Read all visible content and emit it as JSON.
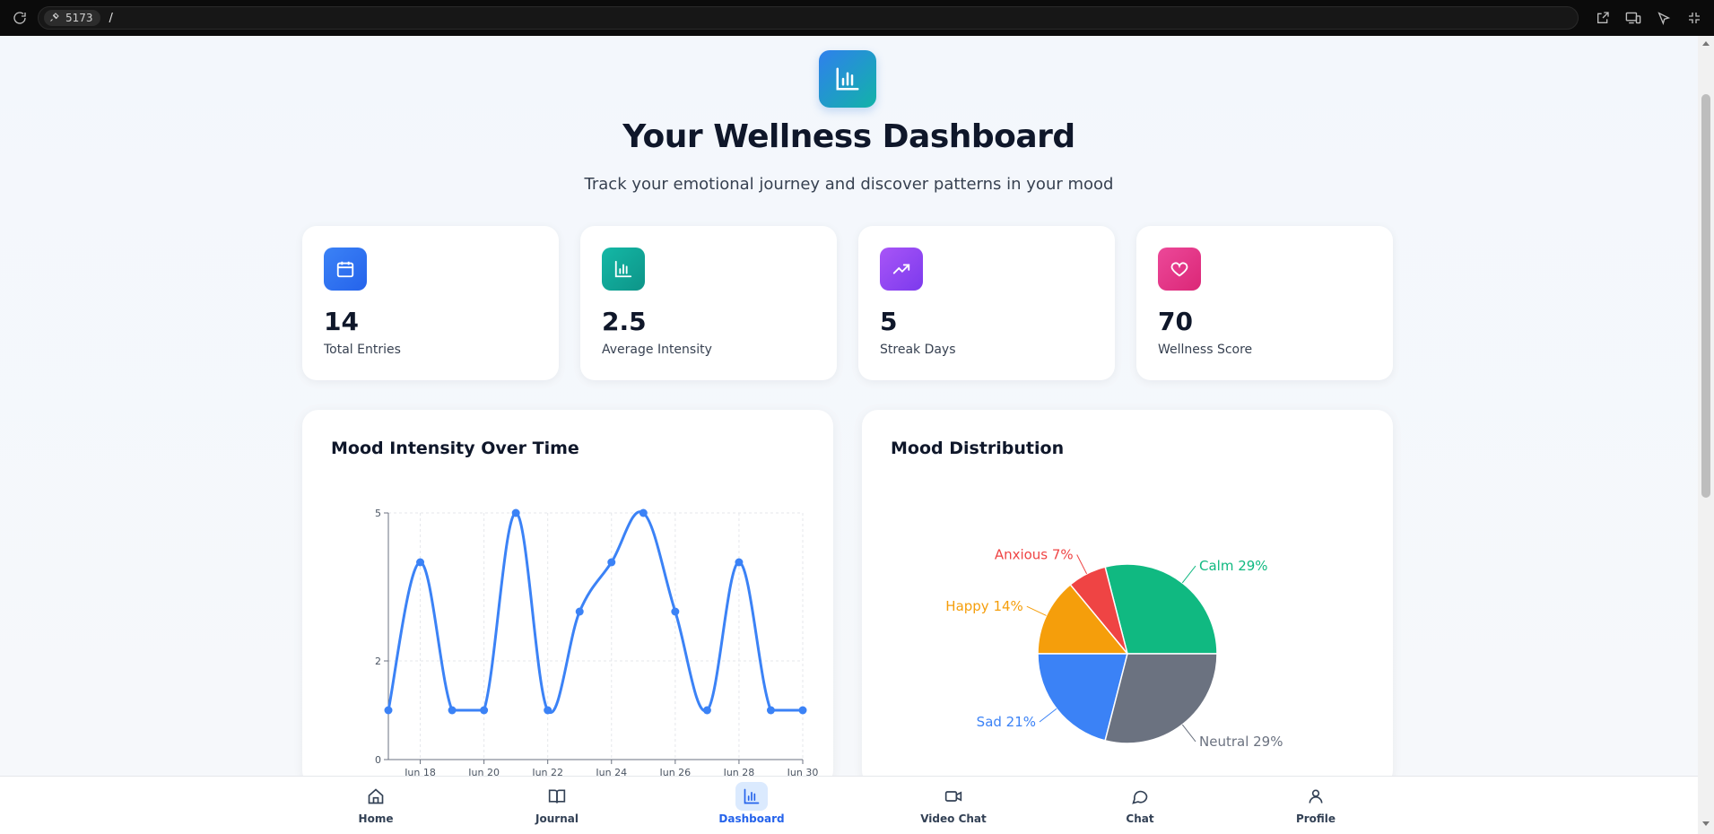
{
  "browser": {
    "port": "5173",
    "path": "/"
  },
  "header": {
    "title": "Your Wellness Dashboard",
    "subtitle": "Track your emotional journey and discover patterns in your mood",
    "icon": "bar-chart-icon"
  },
  "stats": [
    {
      "value": "14",
      "label": "Total Entries",
      "icon": "calendar-icon",
      "color": "#3b82f6"
    },
    {
      "value": "2.5",
      "label": "Average Intensity",
      "icon": "bar-chart-icon",
      "color": "#14b8a6"
    },
    {
      "value": "5",
      "label": "Streak Days",
      "icon": "trending-up-icon",
      "color": "#8b5cf6"
    },
    {
      "value": "70",
      "label": "Wellness Score",
      "icon": "heart-icon",
      "color": "#ec4899"
    }
  ],
  "panels": {
    "line_title": "Mood Intensity Over Time",
    "pie_title": "Mood Distribution"
  },
  "chart_data": [
    {
      "type": "line",
      "title": "Mood Intensity Over Time",
      "x": [
        "Jun 17",
        "Jun 18",
        "Jun 19",
        "Jun 20",
        "Jun 21",
        "Jun 22",
        "Jun 23",
        "Jun 24",
        "Jun 25",
        "Jun 26",
        "Jun 27",
        "Jun 28",
        "Jun 29",
        "Jun 30"
      ],
      "x_tick_labels": [
        "Jun 18",
        "Jun 20",
        "Jun 22",
        "Jun 24",
        "Jun 26",
        "Jun 28",
        "Jun 30"
      ],
      "y_ticks": [
        "0",
        "2",
        "5"
      ],
      "values": [
        1,
        4,
        1,
        1,
        5,
        1,
        3,
        4,
        5,
        3,
        1,
        4,
        1,
        1
      ],
      "ylim": [
        0,
        5
      ],
      "color": "#3b82f6",
      "grid": true
    },
    {
      "type": "pie",
      "title": "Mood Distribution",
      "slices": [
        {
          "label": "Calm 29%",
          "value": 29,
          "color": "#10b981"
        },
        {
          "label": "Anxious 7%",
          "value": 7,
          "color": "#ef4444"
        },
        {
          "label": "Happy 14%",
          "value": 14,
          "color": "#f59e0b"
        },
        {
          "label": "Sad 21%",
          "value": 21,
          "color": "#3b82f6"
        },
        {
          "label": "Neutral 29%",
          "value": 29,
          "color": "#6b7280"
        }
      ]
    }
  ],
  "nav": [
    {
      "label": "Home",
      "icon": "home-icon",
      "active": false
    },
    {
      "label": "Journal",
      "icon": "book-icon",
      "active": false
    },
    {
      "label": "Dashboard",
      "icon": "bar-chart-icon",
      "active": true
    },
    {
      "label": "Video Chat",
      "icon": "video-icon",
      "active": false
    },
    {
      "label": "Chat",
      "icon": "message-icon",
      "active": false
    },
    {
      "label": "Profile",
      "icon": "user-icon",
      "active": false
    }
  ]
}
